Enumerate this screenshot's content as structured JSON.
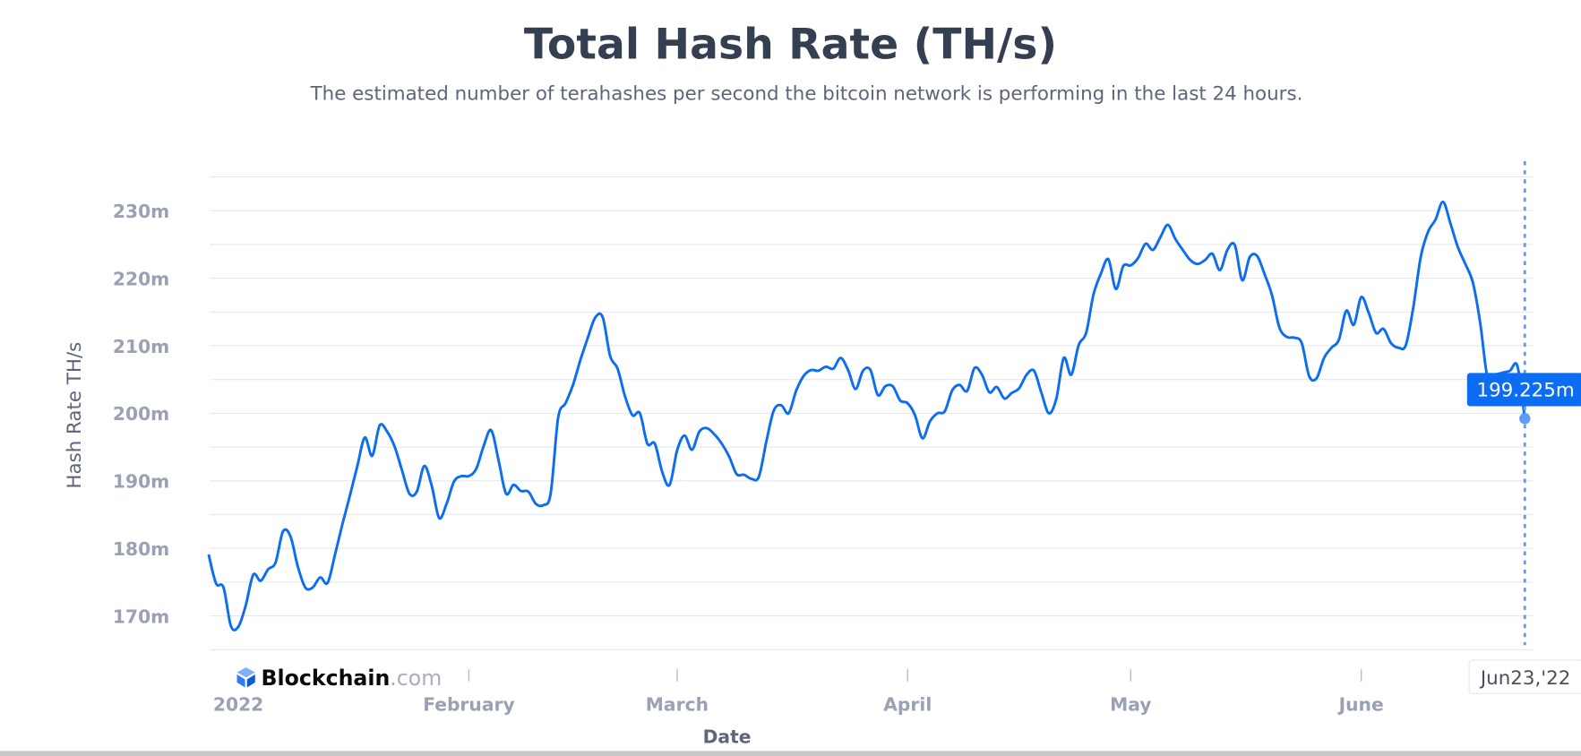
{
  "chart_data": {
    "type": "line",
    "title": "Total Hash Rate (TH/s)",
    "subtitle": "The estimated number of terahashes per second the bitcoin network is performing in the last 24 hours.",
    "xlabel": "Date",
    "ylabel": "Hash Rate TH/s",
    "ylim": [
      165,
      235
    ],
    "xlim": [
      "2021-12-28",
      "2022-06-23"
    ],
    "grid": true,
    "y_ticks": [
      {
        "value": 230,
        "label": "230m"
      },
      {
        "value": 220,
        "label": "220m"
      },
      {
        "value": 210,
        "label": "210m"
      },
      {
        "value": 200,
        "label": "200m"
      },
      {
        "value": 190,
        "label": "190m"
      },
      {
        "value": 180,
        "label": "180m"
      },
      {
        "value": 170,
        "label": "170m"
      }
    ],
    "x_ticks": [
      {
        "date": "2022-01-01",
        "label": "2022"
      },
      {
        "date": "2022-02-01",
        "label": "February"
      },
      {
        "date": "2022-03-01",
        "label": "March"
      },
      {
        "date": "2022-04-01",
        "label": "April"
      },
      {
        "date": "2022-05-01",
        "label": "May"
      },
      {
        "date": "2022-06-01",
        "label": "June"
      }
    ],
    "line_color": "#0c6cf2",
    "hover": {
      "date": "2022-06-23",
      "date_label": "Jun23,'22",
      "value": 199.225,
      "value_label": "199.225m",
      "color": "#0c6cf2"
    },
    "x": [
      "2021-12-28",
      "2021-12-29",
      "2021-12-30",
      "2021-12-31",
      "2022-01-01",
      "2022-01-02",
      "2022-01-03",
      "2022-01-04",
      "2022-01-05",
      "2022-01-06",
      "2022-01-07",
      "2022-01-08",
      "2022-01-09",
      "2022-01-10",
      "2022-01-11",
      "2022-01-12",
      "2022-01-13",
      "2022-01-14",
      "2022-01-15",
      "2022-01-16",
      "2022-01-17",
      "2022-01-18",
      "2022-01-19",
      "2022-01-20",
      "2022-01-21",
      "2022-01-22",
      "2022-01-23",
      "2022-01-24",
      "2022-01-25",
      "2022-01-26",
      "2022-01-27",
      "2022-01-28",
      "2022-01-29",
      "2022-01-30",
      "2022-01-31",
      "2022-02-01",
      "2022-02-02",
      "2022-02-03",
      "2022-02-04",
      "2022-02-05",
      "2022-02-06",
      "2022-02-07",
      "2022-02-08",
      "2022-02-09",
      "2022-02-10",
      "2022-02-11",
      "2022-02-12",
      "2022-02-13",
      "2022-02-14",
      "2022-02-15",
      "2022-02-16",
      "2022-02-17",
      "2022-02-18",
      "2022-02-19",
      "2022-02-20",
      "2022-02-21",
      "2022-02-22",
      "2022-02-23",
      "2022-02-24",
      "2022-02-25",
      "2022-02-26",
      "2022-02-27",
      "2022-02-28",
      "2022-03-01",
      "2022-03-02",
      "2022-03-03",
      "2022-03-04",
      "2022-03-05",
      "2022-03-06",
      "2022-03-07",
      "2022-03-08",
      "2022-03-09",
      "2022-03-10",
      "2022-03-11",
      "2022-03-12",
      "2022-03-13",
      "2022-03-14",
      "2022-03-15",
      "2022-03-16",
      "2022-03-17",
      "2022-03-18",
      "2022-03-19",
      "2022-03-20",
      "2022-03-21",
      "2022-03-22",
      "2022-03-23",
      "2022-03-24",
      "2022-03-25",
      "2022-03-26",
      "2022-03-27",
      "2022-03-28",
      "2022-03-29",
      "2022-03-30",
      "2022-03-31",
      "2022-04-01",
      "2022-04-02",
      "2022-04-03",
      "2022-04-04",
      "2022-04-05",
      "2022-04-06",
      "2022-04-07",
      "2022-04-08",
      "2022-04-09",
      "2022-04-10",
      "2022-04-11",
      "2022-04-12",
      "2022-04-13",
      "2022-04-14",
      "2022-04-15",
      "2022-04-16",
      "2022-04-17",
      "2022-04-18",
      "2022-04-19",
      "2022-04-20",
      "2022-04-21",
      "2022-04-22",
      "2022-04-23",
      "2022-04-24",
      "2022-04-25",
      "2022-04-26",
      "2022-04-27",
      "2022-04-28",
      "2022-04-29",
      "2022-04-30",
      "2022-05-01",
      "2022-05-02",
      "2022-05-03",
      "2022-05-04",
      "2022-05-05",
      "2022-05-06",
      "2022-05-07",
      "2022-05-08",
      "2022-05-09",
      "2022-05-10",
      "2022-05-11",
      "2022-05-12",
      "2022-05-13",
      "2022-05-14",
      "2022-05-15",
      "2022-05-16",
      "2022-05-17",
      "2022-05-18",
      "2022-05-19",
      "2022-05-20",
      "2022-05-21",
      "2022-05-22",
      "2022-05-23",
      "2022-05-24",
      "2022-05-25",
      "2022-05-26",
      "2022-05-27",
      "2022-05-28",
      "2022-05-29",
      "2022-05-30",
      "2022-05-31",
      "2022-06-01",
      "2022-06-02",
      "2022-06-03",
      "2022-06-04",
      "2022-06-05",
      "2022-06-06",
      "2022-06-07",
      "2022-06-08",
      "2022-06-09",
      "2022-06-10",
      "2022-06-11",
      "2022-06-12",
      "2022-06-13",
      "2022-06-14",
      "2022-06-15",
      "2022-06-16",
      "2022-06-17",
      "2022-06-18",
      "2022-06-19",
      "2022-06-20",
      "2022-06-21",
      "2022-06-22",
      "2022-06-23"
    ],
    "y": [
      179.1,
      174.8,
      174.2,
      168.5,
      168.4,
      171.6,
      176.1,
      175.2,
      176.9,
      177.9,
      182.5,
      181.8,
      177.3,
      174.2,
      174.2,
      175.7,
      174.9,
      179.1,
      183.6,
      187.8,
      192.2,
      196.4,
      193.7,
      198.2,
      197.3,
      195.1,
      191.6,
      188.1,
      188.4,
      192.2,
      189.3,
      184.5,
      186.6,
      189.9,
      190.7,
      190.7,
      191.8,
      195.2,
      197.5,
      193.0,
      188.1,
      189.4,
      188.5,
      188.4,
      186.6,
      186.4,
      188.1,
      199.3,
      201.5,
      204.2,
      207.9,
      211.2,
      214.2,
      214.2,
      208.5,
      206.6,
      202.5,
      199.7,
      200.0,
      195.5,
      195.5,
      191.3,
      189.4,
      194.5,
      196.7,
      194.6,
      197.3,
      197.8,
      196.9,
      195.5,
      193.6,
      191.0,
      190.9,
      190.3,
      190.6,
      195.8,
      200.4,
      201.2,
      200.0,
      203.3,
      205.5,
      206.4,
      206.3,
      206.9,
      206.6,
      208.2,
      206.4,
      203.6,
      206.3,
      206.4,
      202.7,
      204.0,
      204.0,
      201.9,
      201.5,
      199.7,
      196.3,
      198.8,
      200.0,
      200.3,
      203.4,
      204.2,
      203.3,
      206.7,
      205.7,
      203.1,
      203.9,
      202.2,
      203.0,
      203.7,
      205.7,
      206.3,
      203.0,
      200.0,
      202.2,
      208.2,
      205.7,
      210.1,
      211.9,
      217.6,
      220.7,
      222.8,
      218.4,
      221.8,
      221.9,
      223.0,
      225.1,
      224.2,
      226.1,
      227.9,
      225.8,
      224.2,
      222.7,
      222.1,
      222.7,
      223.6,
      221.2,
      224.2,
      224.9,
      219.7,
      223.1,
      223.3,
      220.6,
      217.5,
      212.7,
      211.3,
      211.2,
      210.4,
      205.5,
      205.2,
      208.2,
      209.7,
      210.9,
      215.2,
      213.1,
      217.2,
      214.9,
      211.9,
      212.5,
      210.4,
      209.7,
      210.1,
      215.7,
      223.1,
      226.9,
      228.7,
      231.3,
      228.1,
      224.6,
      222.1,
      219.4,
      213.4,
      205.2,
      205.7,
      206.0,
      206.3,
      207.0,
      199.225
    ]
  },
  "branding": {
    "logo_text": "Blockchain",
    "logo_suffix": ".com",
    "logo_color": "#0c6cf2"
  }
}
